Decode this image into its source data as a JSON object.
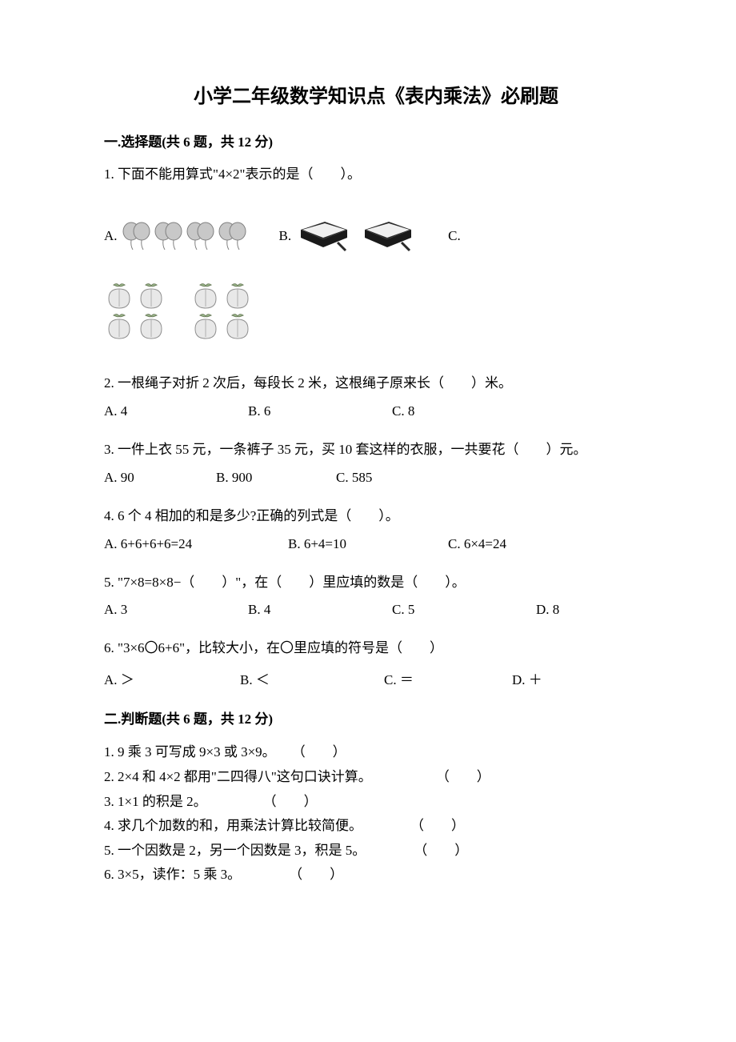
{
  "title": "小学二年级数学知识点《表内乘法》必刷题",
  "section1": {
    "header": "一.选择题(共 6 题，共 12 分)",
    "q1": {
      "text": "1. 下面不能用算式\"4×2\"表示的是（　　）。",
      "optA": "A.",
      "optB": "B.",
      "optC": "C."
    },
    "q2": {
      "text": "2. 一根绳子对折 2 次后，每段长 2 米，这根绳子原来长（　　）米。",
      "A": "A. 4",
      "B": "B. 6",
      "C": "C. 8"
    },
    "q3": {
      "text": "3. 一件上衣 55 元，一条裤子 35 元，买 10 套这样的衣服，一共要花（　　）元。",
      "A": "A. 90",
      "B": "B. 900",
      "C": "C. 585"
    },
    "q4": {
      "text": "4. 6 个 4 相加的和是多少?正确的列式是（　　）。",
      "A": "A. 6+6+6+6=24",
      "B": "B. 6+4=10",
      "C": "C. 6×4=24"
    },
    "q5": {
      "text": "5. \"7×8=8×8−（　　）\"，在（　　）里应填的数是（　　）。",
      "A": "A. 3",
      "B": "B. 4",
      "C": "C. 5",
      "D": "D. 8"
    },
    "q6": {
      "text": "6. \"3×6〇6+6\"，比较大小，在〇里应填的符号是（　　）",
      "A": "A. ＞",
      "B": "B. ＜",
      "C": "C. ＝",
      "D": "D. ＋"
    }
  },
  "section2": {
    "header": "二.判断题(共 6 题，共 12 分)",
    "items": [
      {
        "text": "1. 9 乘 3 可写成 9×3 或 3×9。",
        "paren": "（　　）",
        "pad": 20
      },
      {
        "text": "2. 2×4 和 4×2 都用\"二四得八\"这句口诀计算。",
        "paren": "（　　）",
        "pad": 80
      },
      {
        "text": "3. 1×1 的积是 2。",
        "paren": "（　　）",
        "pad": 70
      },
      {
        "text": "4. 求几个加数的和，用乘法计算比较简便。",
        "paren": "（　　）",
        "pad": 60
      },
      {
        "text": "5. 一个因数是 2，另一个因数是 3，积是 5。",
        "paren": "（　　）",
        "pad": 60
      },
      {
        "text": "6. 3×5，读作：5 乘 3。",
        "paren": "（　　）",
        "pad": 60
      }
    ]
  },
  "colors": {
    "text": "#000000",
    "bg": "#ffffff",
    "balloon_fill": "#c8c8c8",
    "balloon_stroke": "#808080",
    "book_fill": "#2a2a2a",
    "book_page": "#f0f0f0",
    "peach_fill": "#e8e8e8",
    "peach_stroke": "#909090"
  }
}
